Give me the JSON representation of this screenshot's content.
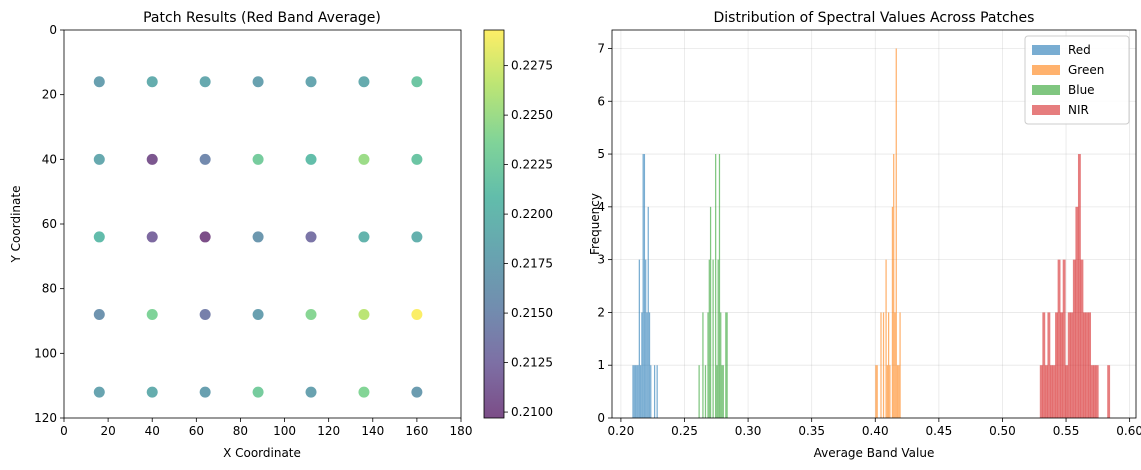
{
  "chart_data": [
    {
      "type": "scatter",
      "title": "Patch Results (Red Band Average)",
      "xlabel": "X Coordinate",
      "ylabel": "Y Coordinate",
      "xlim": [
        0,
        180
      ],
      "ylim": [
        120,
        0
      ],
      "y_inverted": true,
      "xticks": [
        0,
        20,
        40,
        60,
        80,
        100,
        120,
        140,
        160,
        180
      ],
      "yticks": [
        0,
        20,
        40,
        60,
        80,
        100,
        120
      ],
      "grid": false,
      "colormap": "viridis",
      "colorbar": {
        "min": 0.2097,
        "max": 0.2293,
        "ticks": [
          "0.2100",
          "0.2125",
          "0.2150",
          "0.2175",
          "0.2200",
          "0.2225",
          "0.2250",
          "0.2275"
        ]
      },
      "points": [
        {
          "x": 16,
          "y": 16,
          "value": 0.2175
        },
        {
          "x": 40,
          "y": 16,
          "value": 0.219
        },
        {
          "x": 64,
          "y": 16,
          "value": 0.2185
        },
        {
          "x": 88,
          "y": 16,
          "value": 0.2178
        },
        {
          "x": 112,
          "y": 16,
          "value": 0.2182
        },
        {
          "x": 136,
          "y": 16,
          "value": 0.2188
        },
        {
          "x": 160,
          "y": 16,
          "value": 0.222
        },
        {
          "x": 16,
          "y": 40,
          "value": 0.2185
        },
        {
          "x": 40,
          "y": 40,
          "value": 0.2105
        },
        {
          "x": 64,
          "y": 40,
          "value": 0.215
        },
        {
          "x": 88,
          "y": 40,
          "value": 0.2228
        },
        {
          "x": 112,
          "y": 40,
          "value": 0.221
        },
        {
          "x": 136,
          "y": 40,
          "value": 0.225
        },
        {
          "x": 160,
          "y": 40,
          "value": 0.2218
        },
        {
          "x": 16,
          "y": 64,
          "value": 0.2208
        },
        {
          "x": 40,
          "y": 64,
          "value": 0.212
        },
        {
          "x": 64,
          "y": 64,
          "value": 0.2098
        },
        {
          "x": 88,
          "y": 64,
          "value": 0.2165
        },
        {
          "x": 112,
          "y": 64,
          "value": 0.213
        },
        {
          "x": 136,
          "y": 64,
          "value": 0.2198
        },
        {
          "x": 160,
          "y": 64,
          "value": 0.2195
        },
        {
          "x": 16,
          "y": 88,
          "value": 0.216
        },
        {
          "x": 40,
          "y": 88,
          "value": 0.2235
        },
        {
          "x": 64,
          "y": 88,
          "value": 0.214
        },
        {
          "x": 88,
          "y": 88,
          "value": 0.2175
        },
        {
          "x": 112,
          "y": 88,
          "value": 0.224
        },
        {
          "x": 136,
          "y": 88,
          "value": 0.2265
        },
        {
          "x": 160,
          "y": 88,
          "value": 0.2292
        },
        {
          "x": 16,
          "y": 112,
          "value": 0.218
        },
        {
          "x": 40,
          "y": 112,
          "value": 0.219
        },
        {
          "x": 64,
          "y": 112,
          "value": 0.2175
        },
        {
          "x": 88,
          "y": 112,
          "value": 0.2228
        },
        {
          "x": 112,
          "y": 112,
          "value": 0.2178
        },
        {
          "x": 136,
          "y": 112,
          "value": 0.2238
        },
        {
          "x": 160,
          "y": 112,
          "value": 0.217
        }
      ]
    },
    {
      "type": "bar",
      "subtype": "histogram",
      "title": "Distribution of Spectral Values Across Patches",
      "xlabel": "Average Band Value",
      "ylabel": "Frequency",
      "xlim": [
        0.193,
        0.605
      ],
      "ylim": [
        0,
        7.35
      ],
      "xticks": [
        "0.20",
        "0.25",
        "0.30",
        "0.35",
        "0.40",
        "0.45",
        "0.50",
        "0.55",
        "0.60"
      ],
      "yticks": [
        0,
        1,
        2,
        3,
        4,
        5,
        6,
        7
      ],
      "grid": true,
      "legend": "top-right",
      "series": [
        {
          "name": "Red",
          "color": "#1f77b4",
          "bin_width": 0.00098,
          "bins": [
            [
              0.2095,
              1
            ],
            [
              0.2105,
              1
            ],
            [
              0.2115,
              1
            ],
            [
              0.2125,
              1
            ],
            [
              0.2135,
              1
            ],
            [
              0.2145,
              3
            ],
            [
              0.2155,
              1
            ],
            [
              0.2165,
              2
            ],
            [
              0.2175,
              5
            ],
            [
              0.2185,
              5
            ],
            [
              0.2195,
              3
            ],
            [
              0.2205,
              2
            ],
            [
              0.2215,
              4
            ],
            [
              0.2225,
              2
            ],
            [
              0.2235,
              1
            ],
            [
              0.2265,
              1
            ],
            [
              0.2285,
              1
            ]
          ]
        },
        {
          "name": "Green",
          "color": "#ff7f0e",
          "bin_width": 0.00098,
          "bins": [
            [
              0.4005,
              1
            ],
            [
              0.4015,
              1
            ],
            [
              0.4045,
              2
            ],
            [
              0.4065,
              2
            ],
            [
              0.4085,
              3
            ],
            [
              0.4095,
              1
            ],
            [
              0.4105,
              2
            ],
            [
              0.4115,
              1
            ],
            [
              0.4135,
              4
            ],
            [
              0.4145,
              5
            ],
            [
              0.4155,
              2
            ],
            [
              0.4165,
              7
            ],
            [
              0.4175,
              1
            ],
            [
              0.4185,
              1
            ],
            [
              0.4195,
              2
            ]
          ]
        },
        {
          "name": "Blue",
          "color": "#2ca02c",
          "bin_width": 0.00098,
          "bins": [
            [
              0.2615,
              1
            ],
            [
              0.2645,
              2
            ],
            [
              0.2665,
              1
            ],
            [
              0.2685,
              2
            ],
            [
              0.2695,
              3
            ],
            [
              0.2705,
              4
            ],
            [
              0.2725,
              3
            ],
            [
              0.2745,
              5
            ],
            [
              0.2755,
              1
            ],
            [
              0.2765,
              3
            ],
            [
              0.2775,
              5
            ],
            [
              0.2785,
              2
            ],
            [
              0.2795,
              1
            ],
            [
              0.2805,
              1
            ],
            [
              0.2825,
              2
            ],
            [
              0.2835,
              2
            ]
          ]
        },
        {
          "name": "NIR",
          "color": "#d62728",
          "bin_width": 0.00225,
          "bins": [
            [
              0.5305,
              1
            ],
            [
              0.5325,
              2
            ],
            [
              0.5345,
              1
            ],
            [
              0.5365,
              2
            ],
            [
              0.5385,
              1
            ],
            [
              0.5405,
              1
            ],
            [
              0.5425,
              2
            ],
            [
              0.5445,
              3
            ],
            [
              0.5465,
              2
            ],
            [
              0.5485,
              3
            ],
            [
              0.5505,
              1
            ],
            [
              0.5525,
              2
            ],
            [
              0.5545,
              2
            ],
            [
              0.5565,
              3
            ],
            [
              0.5585,
              4
            ],
            [
              0.5605,
              5
            ],
            [
              0.5625,
              3
            ],
            [
              0.5645,
              2
            ],
            [
              0.5665,
              2
            ],
            [
              0.5685,
              2
            ],
            [
              0.5705,
              1
            ],
            [
              0.5725,
              1
            ],
            [
              0.5745,
              1
            ],
            [
              0.5835,
              1
            ]
          ]
        }
      ]
    }
  ]
}
